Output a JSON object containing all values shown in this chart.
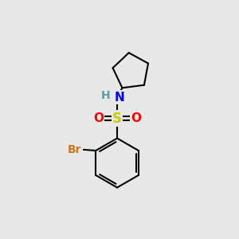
{
  "background_color": "#e8e8e8",
  "atom_colors": {
    "C": "#000000",
    "H": "#5f9ea0",
    "N": "#0000ff",
    "O": "#ff0000",
    "S": "#cccc00",
    "Br": "#cc7722"
  },
  "bond_color": "#000000",
  "bond_width": 1.5,
  "font_size_atoms": 11,
  "fig_width": 3.0,
  "fig_height": 3.0,
  "dpi": 100
}
